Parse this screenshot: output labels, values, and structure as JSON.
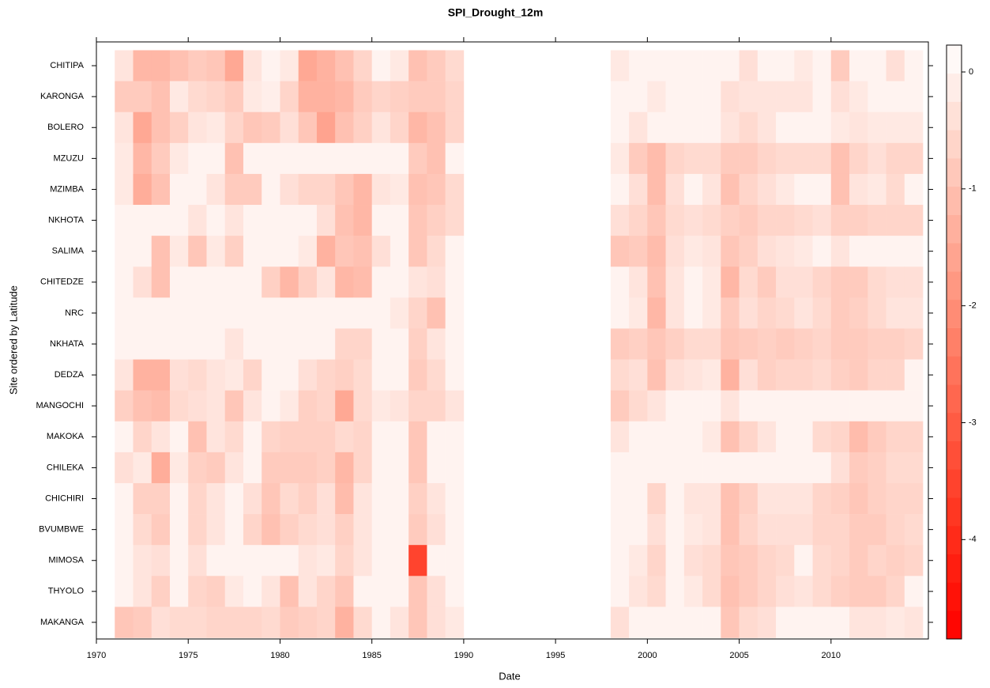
{
  "chart_data": {
    "type": "heatmap",
    "title": "SPI_Drought_12m",
    "x_label": "Date",
    "y_label": "Site ordered by Latitude",
    "x": [
      1971,
      1972,
      1973,
      1974,
      1975,
      1976,
      1977,
      1978,
      1979,
      1980,
      1981,
      1982,
      1983,
      1984,
      1985,
      1986,
      1987,
      1988,
      1989,
      1990,
      1991,
      1992,
      1993,
      1994,
      1995,
      1996,
      1997,
      1998,
      1999,
      2000,
      2001,
      2002,
      2003,
      2004,
      2005,
      2006,
      2007,
      2008,
      2009,
      2010,
      2011,
      2012,
      2013,
      2014
    ],
    "xlim": [
      1970,
      2015.3
    ],
    "xticks": [
      1970,
      1975,
      1980,
      1985,
      1990,
      1995,
      2000,
      2005,
      2010
    ],
    "low_color": "#ff0000",
    "high_color": "#ffffff",
    "zlim": [
      -4.85,
      0.23
    ],
    "zticks": [
      0,
      -1,
      -2,
      -3,
      -4
    ],
    "series": [
      {
        "name": "CHITIPA",
        "values": [
          -0.3,
          -1.2,
          -1.2,
          -1,
          -0.8,
          -0.9,
          -1.5,
          -0.3,
          0,
          -0.2,
          -1.5,
          -1.3,
          -1.0,
          -0.6,
          0,
          -0.2,
          -1.0,
          -0.8,
          -0.5,
          null,
          null,
          null,
          null,
          null,
          null,
          null,
          null,
          -0.2,
          0,
          0,
          0,
          0,
          0,
          0,
          -0.4,
          0,
          0,
          -0.2,
          0,
          -0.8,
          0,
          0,
          -0.4,
          0
        ]
      },
      {
        "name": "KARONGA",
        "values": [
          -0.8,
          -0.8,
          -1.0,
          -0.2,
          -0.5,
          -0.6,
          -0.8,
          -0.2,
          -0.1,
          -0.6,
          -1.3,
          -1.3,
          -1.2,
          -0.8,
          -0.6,
          -0.7,
          -0.8,
          -0.8,
          -0.6,
          null,
          null,
          null,
          null,
          null,
          null,
          null,
          null,
          0,
          0,
          -0.2,
          0,
          0,
          0,
          -0.4,
          -0.3,
          -0.3,
          -0.3,
          -0.3,
          0,
          -0.4,
          -0.2,
          0,
          0,
          0
        ]
      },
      {
        "name": "BOLERO",
        "values": [
          -0.3,
          -1.5,
          -1.0,
          -0.7,
          -0.3,
          -0.2,
          -0.6,
          -0.9,
          -0.8,
          -0.4,
          -0.9,
          -1.6,
          -1.0,
          -0.7,
          -0.3,
          -0.6,
          -1.2,
          -1.0,
          -0.6,
          null,
          null,
          null,
          null,
          null,
          null,
          null,
          null,
          0,
          -0.3,
          0,
          0,
          0,
          0,
          -0.3,
          -0.5,
          -0.3,
          0,
          0,
          0,
          -0.2,
          -0.3,
          -0.2,
          -0.2,
          -0.2
        ]
      },
      {
        "name": "MZUZU",
        "values": [
          -0.2,
          -1.2,
          -0.8,
          -0.2,
          0,
          0,
          -1.0,
          0,
          0,
          0,
          0,
          0,
          0,
          0,
          0,
          0,
          -0.8,
          -1.0,
          0,
          null,
          null,
          null,
          null,
          null,
          null,
          null,
          null,
          -0.2,
          -0.8,
          -1.1,
          -0.6,
          -0.5,
          -0.5,
          -0.8,
          -0.8,
          -0.6,
          -0.5,
          -0.5,
          -0.5,
          -1.0,
          -0.6,
          -0.4,
          -0.6,
          -0.6
        ]
      },
      {
        "name": "MZIMBA",
        "values": [
          -0.2,
          -1.4,
          -1.0,
          0,
          0,
          -0.3,
          -0.8,
          -0.8,
          0,
          -0.4,
          -0.6,
          -0.6,
          -0.9,
          -1.2,
          -0.3,
          -0.2,
          -1.0,
          -0.9,
          -0.5,
          null,
          null,
          null,
          null,
          null,
          null,
          null,
          null,
          0,
          -0.4,
          -1.1,
          -0.4,
          0,
          -0.3,
          -1.0,
          -0.6,
          -0.4,
          -0.2,
          0,
          0,
          -1.0,
          -0.3,
          -0.2,
          -0.5,
          0
        ]
      },
      {
        "name": "NKHOTA",
        "values": [
          0,
          0,
          0,
          0,
          -0.3,
          0,
          -0.3,
          0,
          0,
          0,
          0,
          -0.4,
          -1.0,
          -1.2,
          0,
          0,
          -0.9,
          -0.7,
          -0.5,
          null,
          null,
          null,
          null,
          null,
          null,
          null,
          null,
          -0.4,
          -0.6,
          -0.9,
          -0.5,
          -0.4,
          -0.5,
          -0.7,
          -0.8,
          -0.6,
          -0.6,
          -0.5,
          -0.4,
          -0.7,
          -0.7,
          -0.6,
          -0.6,
          -0.6
        ]
      },
      {
        "name": "SALIMA",
        "values": [
          0,
          0,
          -1.0,
          -0.2,
          -0.9,
          -0.2,
          -0.7,
          0,
          0,
          0,
          -0.2,
          -1.3,
          -0.9,
          -1.0,
          -0.4,
          0,
          -0.9,
          -0.5,
          0,
          null,
          null,
          null,
          null,
          null,
          null,
          null,
          null,
          -0.9,
          -0.8,
          -1.1,
          -0.4,
          -0.2,
          -0.3,
          -0.9,
          -0.7,
          -0.4,
          -0.3,
          -0.2,
          0,
          -0.3,
          0,
          0,
          0,
          0
        ]
      },
      {
        "name": "CHITEDZE",
        "values": [
          0,
          -0.4,
          -1.0,
          0,
          0,
          0,
          0,
          0,
          -0.7,
          -1.2,
          -0.7,
          -0.3,
          -1.2,
          -1.1,
          0,
          0,
          -0.3,
          -0.4,
          0,
          null,
          null,
          null,
          null,
          null,
          null,
          null,
          null,
          0,
          -0.3,
          -1.0,
          -0.3,
          0,
          -0.2,
          -1.2,
          -0.5,
          -0.8,
          -0.4,
          -0.4,
          -0.6,
          -0.8,
          -0.8,
          -0.5,
          -0.4,
          -0.4
        ]
      },
      {
        "name": "NRC",
        "values": [
          0,
          0,
          0,
          0,
          0,
          0,
          0,
          0,
          0,
          0,
          0,
          0,
          0,
          0,
          0,
          -0.2,
          -0.6,
          -1.0,
          0,
          null,
          null,
          null,
          null,
          null,
          null,
          null,
          null,
          0,
          -0.2,
          -1.2,
          -0.3,
          0,
          -0.2,
          -0.8,
          -0.4,
          -0.6,
          -0.5,
          -0.3,
          -0.5,
          -0.8,
          -0.7,
          -0.5,
          -0.3,
          -0.3
        ]
      },
      {
        "name": "NKHATA",
        "values": [
          0,
          0,
          0,
          0,
          0,
          0,
          -0.3,
          0,
          0,
          0,
          0,
          0,
          -0.6,
          -0.6,
          0,
          0,
          -0.7,
          -0.3,
          0,
          null,
          null,
          null,
          null,
          null,
          null,
          null,
          null,
          -0.8,
          -0.7,
          -0.9,
          -0.7,
          -0.5,
          -0.5,
          -0.9,
          -0.8,
          -0.7,
          -0.8,
          -0.7,
          -0.6,
          -0.8,
          -0.8,
          -0.7,
          -0.7,
          -0.6
        ]
      },
      {
        "name": "DEDZA",
        "values": [
          -0.3,
          -1.3,
          -1.3,
          -0.4,
          -0.5,
          -0.3,
          -0.2,
          -0.6,
          0,
          0,
          -0.4,
          -0.6,
          -0.7,
          -0.5,
          0,
          0,
          -0.8,
          -0.5,
          0,
          null,
          null,
          null,
          null,
          null,
          null,
          null,
          null,
          -0.5,
          -0.4,
          -1.0,
          -0.4,
          -0.3,
          -0.2,
          -1.3,
          -0.4,
          -0.7,
          -0.6,
          -0.6,
          -0.5,
          -0.7,
          -0.8,
          -0.6,
          -0.6,
          0
        ]
      },
      {
        "name": "MANGOCHI",
        "values": [
          -0.7,
          -1.0,
          -1.1,
          -0.5,
          -0.4,
          -0.3,
          -0.9,
          -0.3,
          0,
          -0.2,
          -0.7,
          -0.6,
          -1.5,
          -0.5,
          -0.2,
          -0.3,
          -0.6,
          -0.6,
          -0.3,
          null,
          null,
          null,
          null,
          null,
          null,
          null,
          null,
          -0.8,
          -0.5,
          -0.3,
          0,
          0,
          0,
          -0.3,
          0,
          0,
          0,
          0,
          0,
          0,
          0,
          0,
          0,
          0
        ]
      },
      {
        "name": "MAKOKA",
        "values": [
          0,
          -0.6,
          -0.3,
          0,
          -1.0,
          -0.3,
          -0.5,
          0,
          -0.6,
          -0.7,
          -0.7,
          -0.7,
          -0.5,
          -0.6,
          0,
          0,
          -0.9,
          0,
          0,
          null,
          null,
          null,
          null,
          null,
          null,
          null,
          null,
          -0.3,
          0,
          0,
          0,
          0,
          -0.2,
          -1.0,
          -0.6,
          -0.3,
          0,
          0,
          -0.5,
          -0.6,
          -1.1,
          -0.8,
          -0.6,
          -0.6
        ]
      },
      {
        "name": "CHILEKA",
        "values": [
          -0.4,
          -0.2,
          -1.4,
          -0.2,
          -0.7,
          -0.8,
          -0.3,
          0,
          -0.8,
          -0.8,
          -0.8,
          -0.7,
          -1.2,
          -0.6,
          0,
          0,
          -0.9,
          0,
          0,
          null,
          null,
          null,
          null,
          null,
          null,
          null,
          null,
          0,
          0,
          0,
          0,
          0,
          0,
          0,
          0,
          0,
          0,
          0,
          0,
          -0.4,
          -0.8,
          -0.7,
          -0.5,
          -0.5
        ]
      },
      {
        "name": "CHICHIRI",
        "values": [
          0,
          -0.7,
          -0.7,
          0,
          -0.6,
          -0.3,
          0,
          -0.4,
          -0.9,
          -0.5,
          -0.7,
          -0.4,
          -1.1,
          -0.3,
          0,
          0,
          -0.7,
          -0.3,
          0,
          null,
          null,
          null,
          null,
          null,
          null,
          null,
          null,
          0,
          0,
          -0.6,
          0,
          -0.3,
          -0.3,
          -1.0,
          -0.7,
          -0.3,
          -0.3,
          -0.3,
          -0.6,
          -0.7,
          -0.9,
          -0.7,
          -0.6,
          -0.6
        ]
      },
      {
        "name": "BVUMBWE",
        "values": [
          0,
          -0.5,
          -0.8,
          0,
          -0.6,
          -0.3,
          0,
          -0.6,
          -1.0,
          -0.7,
          -0.5,
          -0.4,
          -0.7,
          -0.3,
          0,
          0,
          -0.8,
          -0.4,
          0,
          null,
          null,
          null,
          null,
          null,
          null,
          null,
          null,
          0,
          0,
          -0.4,
          0,
          -0.2,
          -0.3,
          -1.0,
          -0.6,
          -0.4,
          -0.4,
          -0.4,
          -0.6,
          -0.6,
          -0.8,
          -0.8,
          -0.6,
          -0.5
        ]
      },
      {
        "name": "MIMOSA",
        "values": [
          0,
          -0.3,
          -0.4,
          0,
          -0.4,
          0,
          0,
          0,
          0,
          0,
          -0.3,
          -0.2,
          -0.6,
          -0.3,
          0,
          0,
          -3.5,
          0,
          0,
          null,
          null,
          null,
          null,
          null,
          null,
          null,
          null,
          0,
          -0.2,
          -0.6,
          0,
          -0.4,
          -0.5,
          -0.9,
          -0.8,
          -0.6,
          -0.5,
          0,
          -0.5,
          -0.6,
          -0.8,
          -0.6,
          -0.7,
          -0.6
        ]
      },
      {
        "name": "THYOLO",
        "values": [
          0,
          -0.3,
          -0.7,
          0,
          -0.6,
          -0.7,
          -0.2,
          0,
          -0.3,
          -1.0,
          -0.3,
          -0.6,
          -0.9,
          0,
          0,
          0,
          -0.9,
          -0.4,
          0,
          null,
          null,
          null,
          null,
          null,
          null,
          null,
          null,
          0,
          -0.3,
          -0.5,
          0,
          -0.2,
          -0.5,
          -1.0,
          -0.8,
          -0.6,
          -0.4,
          -0.3,
          -0.5,
          -0.7,
          -0.8,
          -0.8,
          -0.6,
          0
        ]
      },
      {
        "name": "MAKANGA",
        "values": [
          -0.9,
          -0.8,
          -0.4,
          -0.5,
          -0.5,
          -0.6,
          -0.6,
          -0.6,
          -0.5,
          -0.8,
          -0.7,
          -0.6,
          -1.3,
          -0.5,
          0,
          -0.3,
          -0.9,
          -0.4,
          -0.2,
          null,
          null,
          null,
          null,
          null,
          null,
          null,
          null,
          -0.4,
          0,
          0,
          0,
          0,
          0,
          -0.9,
          -0.5,
          -0.4,
          0,
          0,
          0,
          0,
          -0.3,
          -0.3,
          -0.2,
          -0.3
        ]
      }
    ]
  }
}
